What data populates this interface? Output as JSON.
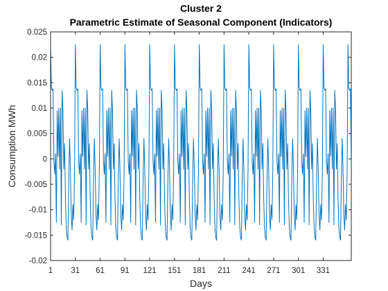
{
  "chart_data": {
    "type": "line",
    "title": "Cluster 2",
    "subtitle": "Parametric Estimate of Seasonal Component (Indicators)",
    "xlabel": "Days",
    "ylabel": "Consumption MWh",
    "xlim": [
      1,
      365
    ],
    "ylim": [
      -0.02,
      0.025
    ],
    "x_ticks": [
      1,
      31,
      61,
      91,
      121,
      151,
      181,
      211,
      241,
      271,
      301,
      331
    ],
    "x_tick_labels": [
      "1",
      "31",
      "61",
      "91",
      "121",
      "151",
      "181",
      "211",
      "241",
      "271",
      "301",
      "331"
    ],
    "y_ticks": [
      -0.02,
      -0.015,
      -0.01,
      -0.005,
      0,
      0.005,
      0.01,
      0.015,
      0.02,
      0.025
    ],
    "y_tick_labels": [
      "-0.02",
      "-0.015",
      "-0.01",
      "-0.005",
      "0",
      "0.005",
      "0.01",
      "0.015",
      "0.02",
      "0.025"
    ],
    "grid": false,
    "series": [
      {
        "color": "#0072BD",
        "period_days": 30,
        "x_start": 1,
        "x_end": 365,
        "cycle_values": [
          0.0225,
          0.014,
          0.0135,
          0.0138,
          -0.0005,
          -0.003,
          0.001,
          -0.0125,
          0.0095,
          0.0005,
          0.01,
          -0.002,
          0.01,
          -0.013,
          0.0135,
          0.0095,
          -0.002,
          0.003,
          -0.008,
          -0.0135,
          -0.0155,
          -0.016,
          -0.004,
          0.004,
          -0.002,
          -0.011,
          -0.014,
          -0.009,
          -0.012,
          -0.0025
        ]
      }
    ]
  }
}
